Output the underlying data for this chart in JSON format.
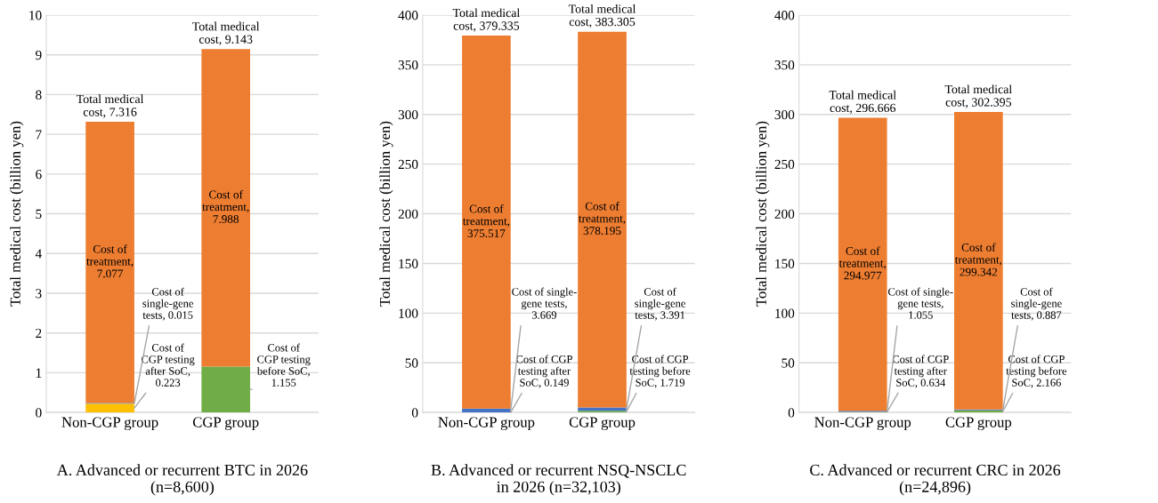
{
  "chart_data": [
    {
      "type": "bar",
      "stacked": true,
      "title": "A. Advanced or recurrent BTC in 2026\n(n=8,600)",
      "ylabel": "Total medical cost (billion yen)",
      "categories": [
        "Non-CGP group",
        "CGP group"
      ],
      "ylim": [
        0,
        10
      ],
      "yticks": [
        0,
        1,
        2,
        3,
        4,
        5,
        6,
        7,
        8,
        9,
        10
      ],
      "grid": "y",
      "series": [
        {
          "color": "#ffc000",
          "values": [
            0.223,
            null
          ],
          "value_labels": [
            "Cost of\nCGP testing\nafter SoC,\n0.223",
            null
          ]
        },
        {
          "color": "#70ad47",
          "values": [
            null,
            1.155
          ],
          "value_labels": [
            null,
            "Cost of\nCGP testing\nbefore SoC,\n1.155"
          ]
        },
        {
          "color": "#4472c4",
          "values": [
            0.015,
            null
          ],
          "value_labels": [
            "Cost of\nsingle-gene\ntests, 0.015",
            null
          ]
        },
        {
          "color": "#ed7d31",
          "values": [
            7.077,
            7.988
          ],
          "value_labels": [
            "Cost of\ntreatment,\n7.077",
            "Cost of\ntreatment,\n7.988"
          ]
        }
      ],
      "totals": [
        "Total medical\ncost, 7.316",
        "Total medical\ncost, 9.143"
      ]
    },
    {
      "type": "bar",
      "stacked": true,
      "title": "B. Advanced or recurrent NSQ-NSCLC\nin 2026 (n=32,103)",
      "ylabel": "Total medical cost (billion yen)",
      "categories": [
        "Non-CGP group",
        "CGP group"
      ],
      "ylim": [
        0,
        400
      ],
      "yticks": [
        0,
        50,
        100,
        150,
        200,
        250,
        300,
        350,
        400
      ],
      "grid": "y",
      "series": [
        {
          "color": "#ffc000",
          "values": [
            0.149,
            null
          ],
          "value_labels": [
            "Cost of CGP\ntesting after\nSoC, 0.149",
            null
          ]
        },
        {
          "color": "#70ad47",
          "values": [
            null,
            1.719
          ],
          "value_labels": [
            null,
            "Cost of CGP\ntesting before\nSoC, 1.719"
          ]
        },
        {
          "color": "#4472c4",
          "values": [
            3.669,
            3.391
          ],
          "value_labels": [
            "Cost of single-\ngene tests,\n3.669",
            "Cost of\nsingle-gene\ntests, 3.391"
          ]
        },
        {
          "color": "#ed7d31",
          "values": [
            375.517,
            378.195
          ],
          "value_labels": [
            "Cost of\ntreatment,\n375.517",
            "Cost of\ntreatment,\n378.195"
          ]
        }
      ],
      "totals": [
        "Total medical\ncost, 379.335",
        "Total medical\ncost, 383.305"
      ]
    },
    {
      "type": "bar",
      "stacked": true,
      "title": "C. Advanced or recurrent CRC in 2026\n(n=24,896)",
      "ylabel": "Total medical cost (billion yen)",
      "categories": [
        "Non-CGP group",
        "CGP group"
      ],
      "ylim": [
        0,
        400
      ],
      "yticks": [
        0,
        50,
        100,
        150,
        200,
        250,
        300,
        350,
        400
      ],
      "grid": "y",
      "series": [
        {
          "color": "#ffc000",
          "values": [
            0.634,
            null
          ],
          "value_labels": [
            "Cost of CGP\ntesting after\nSoC, 0.634",
            null
          ]
        },
        {
          "color": "#70ad47",
          "values": [
            null,
            2.166
          ],
          "value_labels": [
            null,
            "Cost of CGP\ntesting before\nSoC, 2.166"
          ]
        },
        {
          "color": "#4472c4",
          "values": [
            1.055,
            0.887
          ],
          "value_labels": [
            "Cost of single-\ngene tests,\n1.055",
            "Cost of\nsingle-gene\ntests, 0.887"
          ]
        },
        {
          "color": "#ed7d31",
          "values": [
            294.977,
            299.342
          ],
          "value_labels": [
            "Cost of\ntreatment,\n294.977",
            "Cost of\ntreatment,\n299.342"
          ]
        }
      ],
      "totals": [
        "Total medical\ncost, 296.666",
        "Total medical\ncost, 302.395"
      ]
    }
  ]
}
